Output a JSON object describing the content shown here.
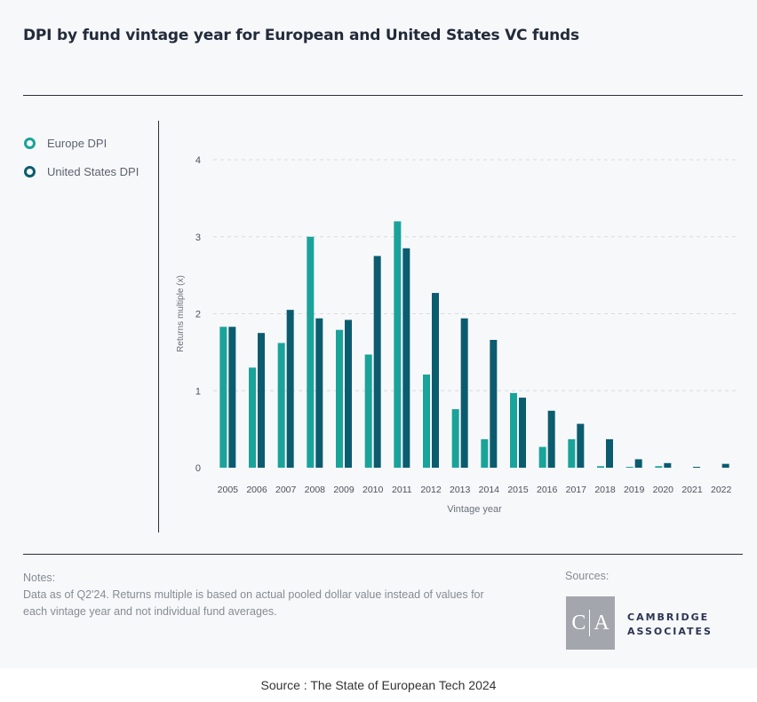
{
  "header": {
    "title": "DPI by fund vintage year for European and United States VC funds"
  },
  "legend": {
    "items": [
      {
        "label": "Europe DPI",
        "color": "#1aa39a"
      },
      {
        "label": "United States DPI",
        "color": "#0b5c6e"
      }
    ]
  },
  "chart_data": {
    "type": "bar",
    "title": "DPI by fund vintage year for European and United States VC funds",
    "xlabel": "Vintage year",
    "ylabel": "Returns multiple (x)",
    "ylim": [
      0,
      4
    ],
    "yticks": [
      0,
      1,
      2,
      3,
      4
    ],
    "grid": true,
    "legend_position": "left",
    "categories": [
      "2005",
      "2006",
      "2007",
      "2008",
      "2009",
      "2010",
      "2011",
      "2012",
      "2013",
      "2014",
      "2015",
      "2016",
      "2017",
      "2018",
      "2019",
      "2020",
      "2021",
      "2022"
    ],
    "series": [
      {
        "name": "Europe DPI",
        "color": "#1aa39a",
        "values": [
          1.83,
          1.3,
          1.62,
          3.0,
          1.79,
          1.47,
          3.2,
          1.21,
          0.76,
          0.37,
          0.97,
          0.27,
          0.37,
          0.02,
          0.01,
          0.02,
          0.0,
          0.0
        ]
      },
      {
        "name": "United States DPI",
        "color": "#0b5c6e",
        "values": [
          1.83,
          1.75,
          2.05,
          1.94,
          1.92,
          2.75,
          2.85,
          2.27,
          1.94,
          1.66,
          0.91,
          0.74,
          0.57,
          0.37,
          0.11,
          0.06,
          0.01,
          0.05
        ]
      }
    ]
  },
  "notes": {
    "heading": "Notes:",
    "text": "Data as of Q2'24. Returns multiple is based on actual pooled dollar value instead of values for each vintage year and not individual fund averages."
  },
  "sources": {
    "label": "Sources:",
    "logo_letters": [
      "C",
      "A"
    ],
    "logo_line1": "CAMBRIDGE",
    "logo_line2": "ASSOCIATES"
  },
  "footer": {
    "text": "Source : The State of European Tech 2024"
  }
}
